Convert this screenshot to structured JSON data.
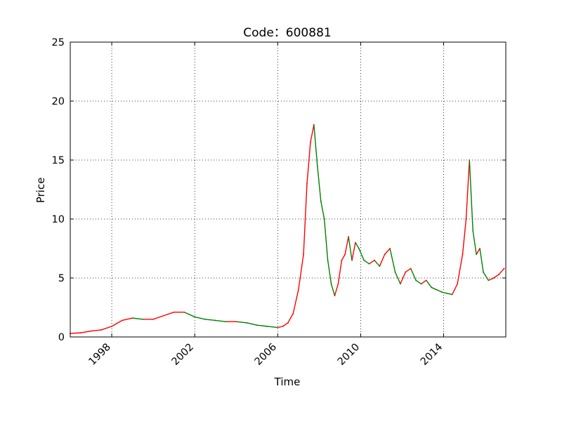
{
  "chart_data": {
    "type": "line",
    "title": "Code：600881",
    "xlabel": "Time",
    "ylabel": "Price",
    "xlim": [
      "1996-01-01",
      "2016-12-31"
    ],
    "ylim": [
      0,
      25
    ],
    "xticks": [
      "1998",
      "2002",
      "2006",
      "2010",
      "2014"
    ],
    "yticks": [
      "0",
      "5",
      "10",
      "15",
      "20",
      "25"
    ],
    "grid": true,
    "legend": "none",
    "colors": {
      "up": "#ff0000",
      "down": "#008000"
    },
    "x": [
      "1996-01",
      "1996-07",
      "1997-01",
      "1997-07",
      "1998-01",
      "1998-07",
      "1999-01",
      "1999-07",
      "2000-01",
      "2000-07",
      "2001-01",
      "2001-07",
      "2002-01",
      "2002-07",
      "2003-01",
      "2003-07",
      "2004-01",
      "2004-07",
      "2005-01",
      "2005-07",
      "2006-01",
      "2006-04",
      "2006-07",
      "2006-10",
      "2007-01",
      "2007-04",
      "2007-06",
      "2007-08",
      "2007-10",
      "2007-12",
      "2008-02",
      "2008-04",
      "2008-06",
      "2008-08",
      "2008-10",
      "2008-12",
      "2009-02",
      "2009-04",
      "2009-06",
      "2009-08",
      "2009-10",
      "2009-12",
      "2010-03",
      "2010-06",
      "2010-09",
      "2010-12",
      "2011-03",
      "2011-06",
      "2011-09",
      "2011-12",
      "2012-03",
      "2012-06",
      "2012-09",
      "2012-12",
      "2013-03",
      "2013-06",
      "2013-09",
      "2013-12",
      "2014-03",
      "2014-06",
      "2014-09",
      "2014-12",
      "2015-02",
      "2015-04",
      "2015-06",
      "2015-08",
      "2015-10",
      "2015-12",
      "2016-03",
      "2016-06",
      "2016-09",
      "2016-12"
    ],
    "values": [
      0.3,
      0.35,
      0.5,
      0.6,
      0.9,
      1.4,
      1.6,
      1.5,
      1.5,
      1.8,
      2.1,
      2.1,
      1.7,
      1.5,
      1.4,
      1.3,
      1.3,
      1.2,
      1.0,
      0.9,
      0.8,
      0.9,
      1.2,
      2.0,
      4.0,
      7.0,
      13.0,
      16.5,
      18.0,
      14.5,
      11.5,
      10.0,
      6.5,
      4.5,
      3.5,
      4.5,
      6.5,
      7.0,
      8.5,
      6.5,
      8.0,
      7.5,
      6.5,
      6.2,
      6.5,
      6.0,
      7.0,
      7.5,
      5.5,
      4.5,
      5.5,
      5.8,
      4.8,
      4.5,
      4.8,
      4.2,
      4.0,
      3.8,
      3.7,
      3.6,
      4.5,
      7.0,
      10.0,
      15.0,
      9.0,
      7.0,
      7.5,
      5.5,
      4.8,
      5.0,
      5.3,
      5.8
    ]
  }
}
